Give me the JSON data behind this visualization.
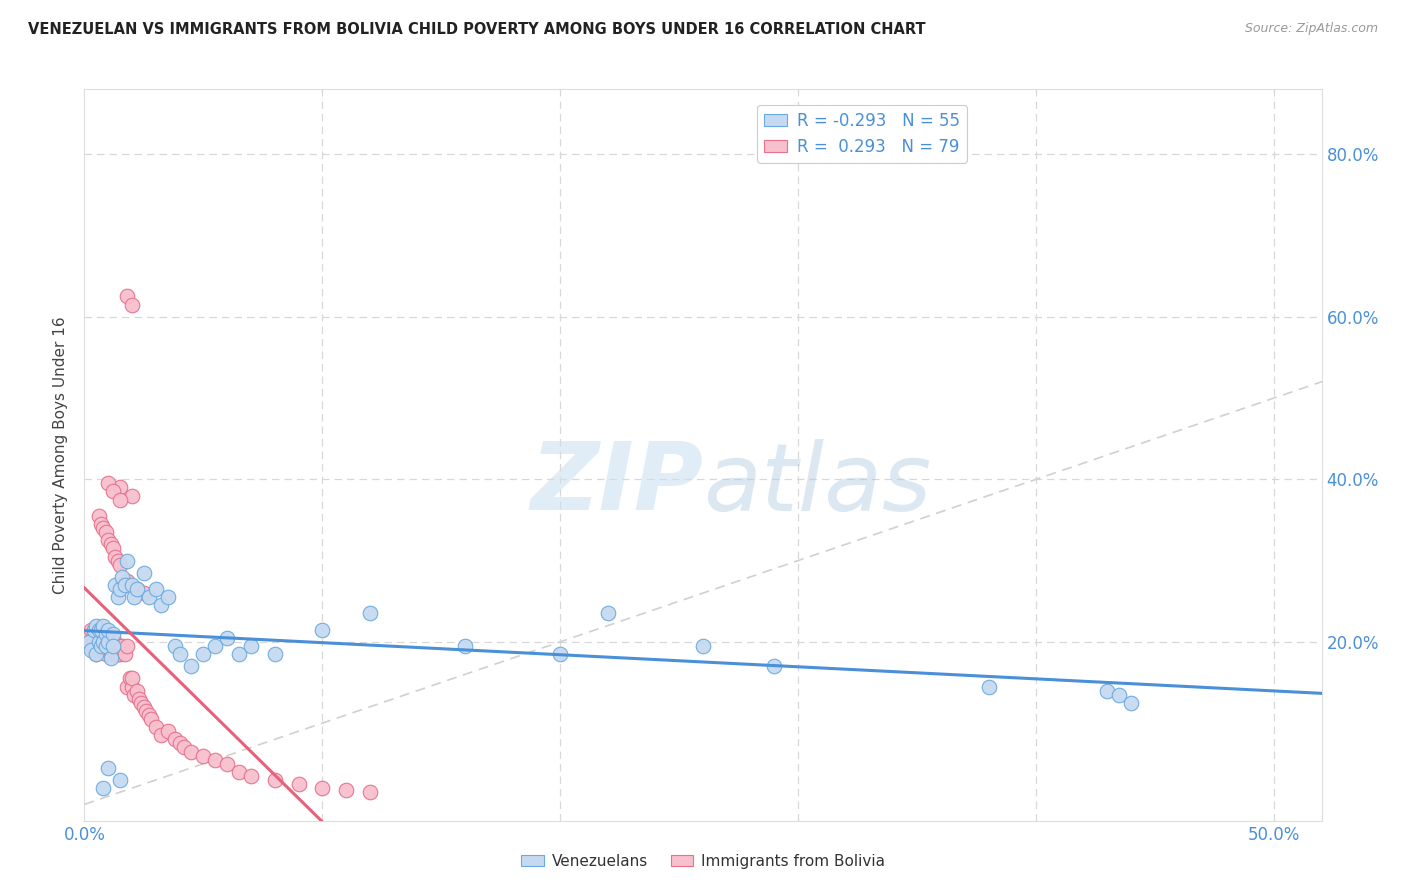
{
  "title": "VENEZUELAN VS IMMIGRANTS FROM BOLIVIA CHILD POVERTY AMONG BOYS UNDER 16 CORRELATION CHART",
  "source": "Source: ZipAtlas.com",
  "ylabel": "Child Poverty Among Boys Under 16",
  "xlim": [
    0.0,
    0.52
  ],
  "ylim": [
    -0.02,
    0.88
  ],
  "legend_labels": [
    "Venezuelans",
    "Immigrants from Bolivia"
  ],
  "blue_fill": "#c5d9f0",
  "blue_edge": "#6aaae0",
  "pink_fill": "#f7c0cf",
  "pink_edge": "#e8708a",
  "blue_line_color": "#4a90d9",
  "pink_line_color": "#e8607a",
  "diagonal_color": "#d0d0d0",
  "grid_color": "#d8d8d8",
  "R_blue": -0.293,
  "N_blue": 55,
  "R_pink": 0.293,
  "N_pink": 79,
  "watermark_zip": "ZIP",
  "watermark_atlas": "atlas",
  "background_color": "#ffffff",
  "right_yticks": [
    0.0,
    0.2,
    0.4,
    0.6,
    0.8
  ],
  "right_ytick_labels": [
    "",
    "20.0%",
    "40.0%",
    "60.0%",
    "80.0%"
  ],
  "blue_x": [
    0.002,
    0.003,
    0.004,
    0.005,
    0.005,
    0.006,
    0.006,
    0.007,
    0.007,
    0.008,
    0.008,
    0.009,
    0.009,
    0.01,
    0.01,
    0.011,
    0.012,
    0.012,
    0.013,
    0.014,
    0.015,
    0.016,
    0.017,
    0.018,
    0.02,
    0.021,
    0.022,
    0.025,
    0.027,
    0.03,
    0.032,
    0.035,
    0.038,
    0.04,
    0.045,
    0.05,
    0.055,
    0.06,
    0.065,
    0.07,
    0.08,
    0.1,
    0.12,
    0.16,
    0.2,
    0.22,
    0.26,
    0.29,
    0.38,
    0.43,
    0.435,
    0.44,
    0.008,
    0.01,
    0.015
  ],
  "blue_y": [
    0.2,
    0.19,
    0.215,
    0.22,
    0.185,
    0.2,
    0.215,
    0.195,
    0.215,
    0.2,
    0.22,
    0.195,
    0.21,
    0.2,
    0.215,
    0.18,
    0.21,
    0.195,
    0.27,
    0.255,
    0.265,
    0.28,
    0.27,
    0.3,
    0.27,
    0.255,
    0.265,
    0.285,
    0.255,
    0.265,
    0.245,
    0.255,
    0.195,
    0.185,
    0.17,
    0.185,
    0.195,
    0.205,
    0.185,
    0.195,
    0.185,
    0.215,
    0.235,
    0.195,
    0.185,
    0.235,
    0.195,
    0.17,
    0.145,
    0.14,
    0.135,
    0.125,
    0.02,
    0.045,
    0.03
  ],
  "pink_x": [
    0.002,
    0.003,
    0.003,
    0.004,
    0.004,
    0.005,
    0.005,
    0.006,
    0.006,
    0.007,
    0.007,
    0.008,
    0.008,
    0.009,
    0.009,
    0.01,
    0.01,
    0.011,
    0.011,
    0.012,
    0.012,
    0.013,
    0.013,
    0.014,
    0.014,
    0.015,
    0.015,
    0.016,
    0.017,
    0.018,
    0.018,
    0.019,
    0.02,
    0.02,
    0.021,
    0.022,
    0.023,
    0.024,
    0.025,
    0.026,
    0.027,
    0.028,
    0.03,
    0.032,
    0.035,
    0.038,
    0.04,
    0.042,
    0.045,
    0.05,
    0.055,
    0.06,
    0.065,
    0.07,
    0.08,
    0.09,
    0.1,
    0.11,
    0.12,
    0.006,
    0.007,
    0.008,
    0.009,
    0.01,
    0.011,
    0.012,
    0.013,
    0.014,
    0.015,
    0.018,
    0.022,
    0.025,
    0.02,
    0.015,
    0.01,
    0.012,
    0.015,
    0.018,
    0.02
  ],
  "pink_y": [
    0.2,
    0.195,
    0.215,
    0.19,
    0.21,
    0.205,
    0.185,
    0.195,
    0.215,
    0.19,
    0.205,
    0.195,
    0.215,
    0.185,
    0.2,
    0.19,
    0.205,
    0.185,
    0.195,
    0.19,
    0.205,
    0.185,
    0.195,
    0.185,
    0.195,
    0.195,
    0.185,
    0.195,
    0.185,
    0.195,
    0.145,
    0.155,
    0.145,
    0.155,
    0.135,
    0.14,
    0.13,
    0.125,
    0.12,
    0.115,
    0.11,
    0.105,
    0.095,
    0.085,
    0.09,
    0.08,
    0.075,
    0.07,
    0.065,
    0.06,
    0.055,
    0.05,
    0.04,
    0.035,
    0.03,
    0.025,
    0.02,
    0.018,
    0.015,
    0.355,
    0.345,
    0.34,
    0.335,
    0.325,
    0.32,
    0.315,
    0.305,
    0.3,
    0.295,
    0.275,
    0.265,
    0.26,
    0.38,
    0.39,
    0.395,
    0.385,
    0.375,
    0.625,
    0.615
  ]
}
